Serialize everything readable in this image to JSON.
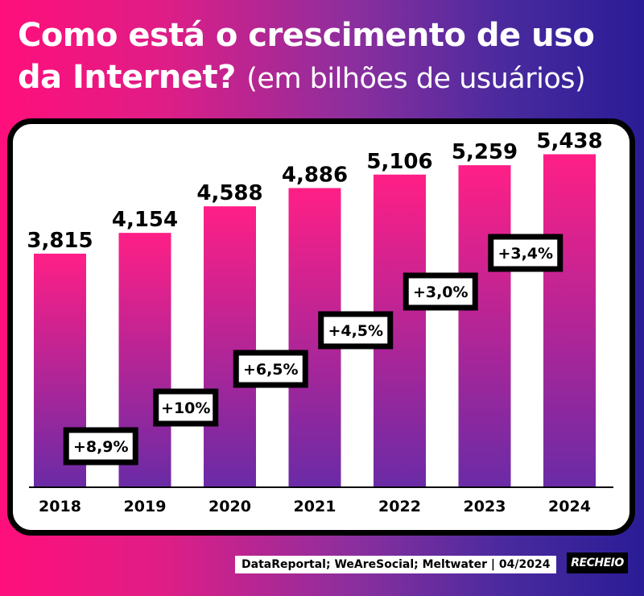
{
  "header": {
    "title_main": "Como está o crescimento de uso da Internet?",
    "title_sub": "(em bilhões de usuários)"
  },
  "footer": {
    "source": "DataReportal; WeAreSocial; Meltwater | 04/2024",
    "logo": "RECHEIO"
  },
  "colors": {
    "bar_top": "#ff1f86",
    "bar_bottom": "#6a2ba6",
    "axis": "#000000",
    "label_box_bg": "#ffffff",
    "label_box_border": "#000000"
  },
  "chart_data": {
    "type": "bar",
    "categories": [
      "2018",
      "2019",
      "2020",
      "2021",
      "2022",
      "2023",
      "2024"
    ],
    "values": [
      3.815,
      4.154,
      4.588,
      4.886,
      5.106,
      5.259,
      5.438
    ],
    "value_labels": [
      "3,815",
      "4,154",
      "4,588",
      "4,886",
      "5,106",
      "5,259",
      "5,438"
    ],
    "growth_labels": [
      "+8,9%",
      "+10%",
      "+6,5%",
      "+4,5%",
      "+3,0%",
      "+3,4%"
    ],
    "title": "",
    "xlabel": "",
    "ylabel": "",
    "ylim": [
      0,
      5.8
    ],
    "grid": false,
    "legend": "none"
  }
}
